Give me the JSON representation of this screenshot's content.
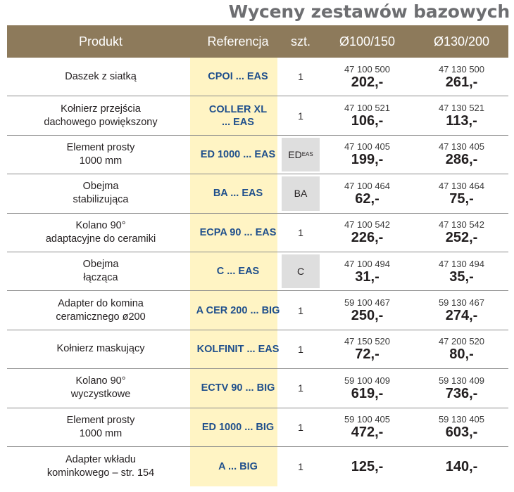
{
  "title": "Wyceny zestawów bazowych",
  "headers": {
    "product": "Produkt",
    "reference": "Referencja",
    "qty": "szt.",
    "d1": "Ø100/150",
    "d2": "Ø130/200"
  },
  "rows": [
    {
      "product": "Daszek z siatką",
      "reference": "CPOI ... EAS",
      "qty": "1",
      "qty_sub": "",
      "code1": "47 100 500",
      "price1": "202,-",
      "code2": "47 130 500",
      "price2": "261,-"
    },
    {
      "product": "Kołnierz przejścia\ndachowego powiększony",
      "reference": "COLLER XL\n... EAS",
      "qty": "1",
      "qty_sub": "",
      "code1": "47 100 521",
      "price1": "106,-",
      "code2": "47 130 521",
      "price2": "113,-"
    },
    {
      "product": "Element prosty\n1000 mm",
      "reference": "ED 1000 ... EAS",
      "qty": "ED",
      "qty_sub": "EAS",
      "code1": "47 100 405",
      "price1": "199,-",
      "code2": "47 130 405",
      "price2": "286,-"
    },
    {
      "product": "Obejma\nstabilizująca",
      "reference": "BA ... EAS",
      "qty": "BA",
      "qty_sub": "",
      "code1": "47 100 464",
      "price1": "62,-",
      "code2": "47 130 464",
      "price2": "75,-"
    },
    {
      "product": "Kolano 90°\nadaptacyjne do ceramiki",
      "reference": "ECPA 90 ... EAS",
      "qty": "1",
      "qty_sub": "",
      "code1": "47 100 542",
      "price1": "226,-",
      "code2": "47 130 542",
      "price2": "252,-"
    },
    {
      "product": "Obejma\nłącząca",
      "reference": "C ... EAS",
      "qty": "C",
      "qty_sub": "",
      "code1": "47 100 494",
      "price1": "31,-",
      "code2": "47 130 494",
      "price2": "35,-"
    },
    {
      "product": "Adapter do komina\nceramicznego ø200",
      "reference": "A CER 200 ... BIG",
      "qty": "1",
      "qty_sub": "",
      "code1": "59 100 467",
      "price1": "250,-",
      "code2": "59 130 467",
      "price2": "274,-"
    },
    {
      "product": "Kołnierz maskujący",
      "reference": "KOLFINIT ... EAS",
      "qty": "1",
      "qty_sub": "",
      "code1": "47 150 520",
      "price1": "72,-",
      "code2": "47 200 520",
      "price2": "80,-"
    },
    {
      "product": "Kolano 90°\nwyczystkowe",
      "reference": "ECTV 90 ... BIG",
      "qty": "1",
      "qty_sub": "",
      "code1": "59 100 409",
      "price1": "619,-",
      "code2": "59 130 409",
      "price2": "736,-"
    },
    {
      "product": "Element prosty\n1000 mm",
      "reference": "ED 1000 ... BIG",
      "qty": "1",
      "qty_sub": "",
      "code1": "59 100 405",
      "price1": "472,-",
      "code2": "59 130 405",
      "price2": "603,-"
    },
    {
      "product": "Adapter wkładu\nkominkowego – str. 154",
      "reference": "A ... BIG",
      "qty": "1",
      "qty_sub": "",
      "code1": "",
      "price1": "125,-",
      "code2": "",
      "price2": "140,-"
    }
  ],
  "gray_qty_rows": [
    2,
    3,
    5
  ]
}
